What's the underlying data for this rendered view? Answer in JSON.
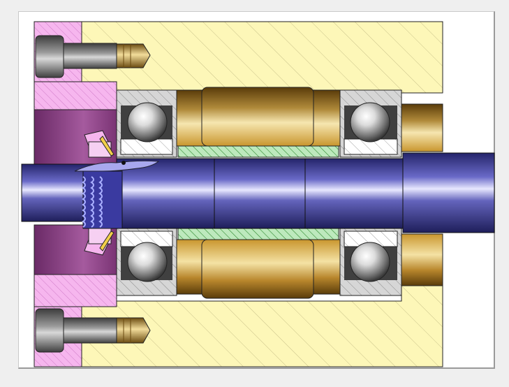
{
  "drawing": {
    "kind": "assembly-section-view",
    "colors": {
      "background": "#efefef",
      "canvas": "#ffffff",
      "housing": "#fdf7b8",
      "flange": "#f6b0ee",
      "flange_cavity": "#9a4a92",
      "shaft": "#4f4fa8",
      "bearing_race": "#c8c8c8",
      "ball": "#9a9a9a",
      "spacer": "#c9962e",
      "spacer_sleeve": "#a6e8a6",
      "screw": "#707070",
      "screw_tip": "#d2a64a",
      "hatch": "#b4b090"
    },
    "parts": [
      "housing",
      "end-flange",
      "cap-screw",
      "deep-groove-ball-bearing",
      "bearing-spacer",
      "spacer-sleeve",
      "shaft",
      "lock-nut",
      "tab-washer",
      "sleeve-housing"
    ]
  }
}
